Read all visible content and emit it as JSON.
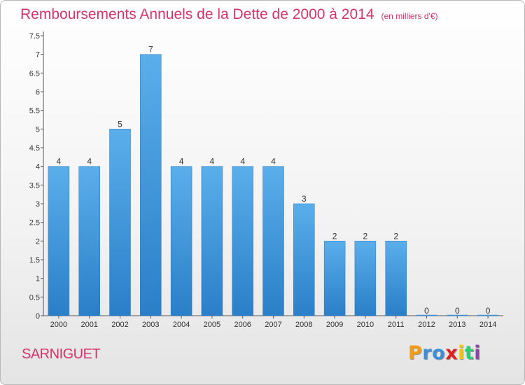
{
  "chart_data": {
    "type": "bar",
    "title": "Remboursements Annuels de la Dette de 2000 à 2014",
    "subtitle": "(en milliers d'€)",
    "categories": [
      "2000",
      "2001",
      "2002",
      "2003",
      "2004",
      "2005",
      "2006",
      "2007",
      "2008",
      "2009",
      "2010",
      "2011",
      "2012",
      "2013",
      "2014"
    ],
    "values": [
      4,
      4,
      5,
      7,
      4,
      4,
      4,
      4,
      3,
      2,
      2,
      2,
      0,
      0,
      0
    ],
    "data_labels": [
      "4",
      "4",
      "5",
      "7",
      "4",
      "4",
      "4",
      "4",
      "3",
      "2",
      "2",
      "2",
      "0",
      "0",
      "0"
    ],
    "ylim": [
      0,
      7.5
    ],
    "yticks": [
      "0",
      "0.5",
      "1",
      "1.5",
      "2",
      "2.5",
      "3",
      "3.5",
      "4",
      "4.5",
      "5",
      "5.5",
      "6",
      "6.5",
      "7",
      "7.5"
    ],
    "grid": false,
    "bar_color": "#3b8fd9"
  },
  "commune": "SARNIGUET",
  "logo": {
    "letters": [
      "P",
      "r",
      "o",
      "x",
      "i",
      "t",
      "i"
    ],
    "colors": [
      "#f39c12",
      "#3b8fd9",
      "#3b8fd9",
      "#e02020",
      "#f1c40f",
      "#2ecc71",
      "#8e44ad"
    ]
  }
}
